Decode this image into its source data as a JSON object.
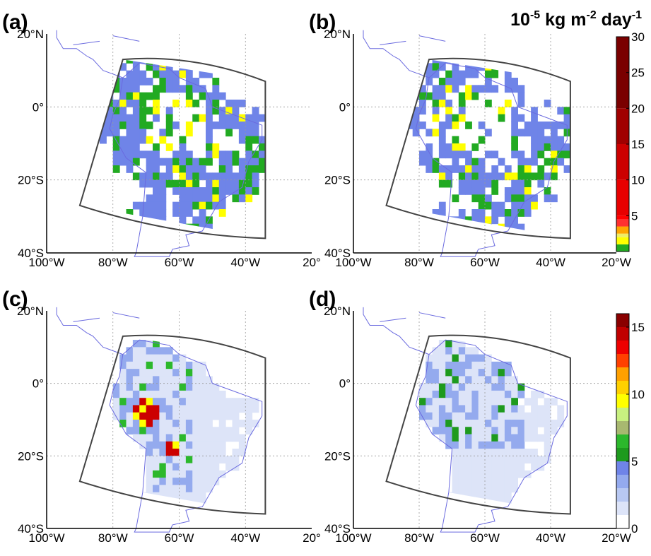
{
  "units": {
    "base": "10",
    "exp1": "-5",
    "mid": " kg m",
    "exp2": "-2",
    "end": " day",
    "exp3": "-1"
  },
  "panels": [
    {
      "label": "(a)",
      "lat_labels": [
        "20°N",
        "0°",
        "20°S",
        "40°S"
      ],
      "lon_labels": [
        "100°W",
        "80°W",
        "60°W",
        "40°W",
        "20°"
      ]
    },
    {
      "label": "(b)",
      "lat_labels": [
        "20°N",
        "0°",
        "20°S",
        "40°S"
      ],
      "lon_labels": [
        "100°W",
        "80°W",
        "60°W",
        "40°W",
        "20°W"
      ]
    },
    {
      "label": "(c)",
      "lat_labels": [
        "20°N",
        "0°",
        "20°S",
        "40°S"
      ],
      "lon_labels": [
        "100°W",
        "80°W",
        "60°W",
        "40°W",
        "20°"
      ]
    },
    {
      "label": "(d)",
      "lat_labels": [
        "20°N",
        "0°",
        "20°S",
        "40°S"
      ],
      "lon_labels": [
        "100°W",
        "80°W",
        "60°W",
        "40°W",
        "20°W"
      ]
    }
  ],
  "colorbars": [
    {
      "levels": [
        0,
        1,
        2,
        2.5,
        3.5,
        4.5,
        5,
        10,
        15,
        20,
        30
      ],
      "colors": [
        "#22aa22",
        "#ffff00",
        "#eeee66",
        "#ffa500",
        "#ff3030",
        "#ff0000",
        "#e80000",
        "#cc0000",
        "#a00000",
        "#7a0000"
      ],
      "ticks": [
        5,
        10,
        15,
        20,
        25,
        30
      ]
    },
    {
      "levels": [
        0,
        1,
        2,
        3,
        4,
        5,
        6,
        7,
        8,
        9,
        10,
        11,
        12,
        13,
        14,
        15,
        16
      ],
      "colors": [
        "#ffffff",
        "#dde4f8",
        "#b8c8f2",
        "#94aaee",
        "#6f84e8",
        "#1e9a1e",
        "#2cb82c",
        "#a8b870",
        "#c8f080",
        "#ffff00",
        "#ffd000",
        "#ffa000",
        "#ff4000",
        "#ee0000",
        "#c00000",
        "#8a0000"
      ],
      "ticks": [
        0,
        5,
        10,
        15
      ]
    }
  ]
}
